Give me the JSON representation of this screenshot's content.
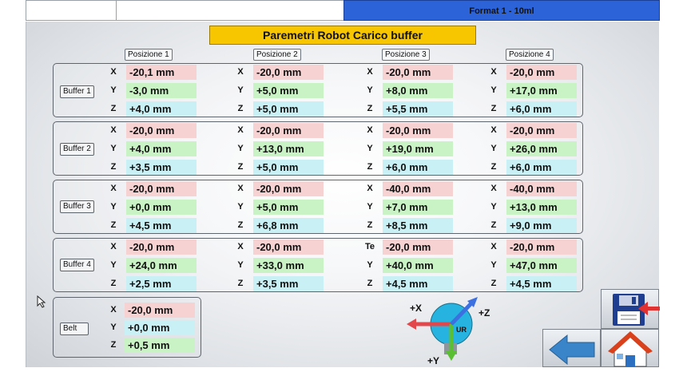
{
  "header": {
    "format_label": "Format 1 - 10ml"
  },
  "title": "Paremetri Robot Carico buffer",
  "positions": [
    "Posizione 1",
    "Posizione 2",
    "Posizione 3",
    "Posizione 4"
  ],
  "buffers": [
    {
      "label": "Buffer 1",
      "axes": [
        "X",
        "Y",
        "Z"
      ],
      "values": [
        [
          "-20,1 mm",
          "-3,0 mm",
          "+4,0 mm"
        ],
        [
          "-20,0 mm",
          "+5,0 mm",
          "+5,0 mm"
        ],
        [
          "-20,0 mm",
          "+8,0 mm",
          "+5,5 mm"
        ],
        [
          "-20,0 mm",
          "+17,0 mm",
          "+6,0 mm"
        ]
      ],
      "axis_labels": [
        [
          "X",
          "Y",
          "Z"
        ],
        [
          "X",
          "Y",
          "Z"
        ],
        [
          "X",
          "Y",
          "Z"
        ],
        [
          "X",
          "Y",
          "Z"
        ]
      ]
    },
    {
      "label": "Buffer 2",
      "values": [
        [
          "-20,0 mm",
          "+4,0 mm",
          "+3,5 mm"
        ],
        [
          "-20,0 mm",
          "+13,0 mm",
          "+5,0 mm"
        ],
        [
          "-20,0 mm",
          "+19,0 mm",
          "+6,0 mm"
        ],
        [
          "-20,0 mm",
          "+26,0 mm",
          "+6,0 mm"
        ]
      ],
      "axis_labels": [
        [
          "X",
          "Y",
          "Z"
        ],
        [
          "X",
          "Y",
          "Z"
        ],
        [
          "X",
          "Y",
          "Z"
        ],
        [
          "X",
          "Y",
          "Z"
        ]
      ]
    },
    {
      "label": "Buffer 3",
      "values": [
        [
          "-20,0 mm",
          "+0,0 mm",
          "+4,5 mm"
        ],
        [
          "-20,0 mm",
          "+5,0 mm",
          "+6,8 mm"
        ],
        [
          "-40,0 mm",
          "+7,0 mm",
          "+8,5 mm"
        ],
        [
          "-40,0 mm",
          "+13,0 mm",
          "+9,0 mm"
        ]
      ],
      "axis_labels": [
        [
          "X",
          "Y",
          "Z"
        ],
        [
          "X",
          "Y",
          "Z"
        ],
        [
          "X",
          "Y",
          "Z"
        ],
        [
          "X",
          "Y",
          "Z"
        ]
      ]
    },
    {
      "label": "Buffer 4",
      "values": [
        [
          "-20,0 mm",
          "+24,0 mm",
          "+2,5 mm"
        ],
        [
          "-20,0 mm",
          "+33,0 mm",
          "+3,5 mm"
        ],
        [
          "-20,0 mm",
          "+40,0 mm",
          "+4,5 mm"
        ],
        [
          "-20,0 mm",
          "+47,0 mm",
          "+4,5 mm"
        ]
      ],
      "axis_labels": [
        [
          "X",
          "Y",
          "Z"
        ],
        [
          "X",
          "Y",
          "Z"
        ],
        [
          "Te",
          "Y",
          "Z"
        ],
        [
          "X",
          "Y",
          "Z"
        ]
      ]
    }
  ],
  "belt": {
    "label": "Belt",
    "axis_labels": [
      "X",
      "Y",
      "Z"
    ],
    "values": [
      "-20,0 mm",
      "+0,0 mm",
      "+0,5 mm"
    ]
  },
  "diagram": {
    "x_label": "+X",
    "y_label": "+Y",
    "z_label": "+Z",
    "ur_label": "UR"
  },
  "colors": {
    "format_bar": "#2d63d8",
    "title_bg": "#f7c600",
    "x_bg": "#f6d2d3",
    "y_bg": "#c9f2c5",
    "z_bg": "#c9f0f5"
  },
  "icons": {
    "save": "save-icon",
    "back": "back-arrow-icon",
    "home": "home-icon"
  }
}
